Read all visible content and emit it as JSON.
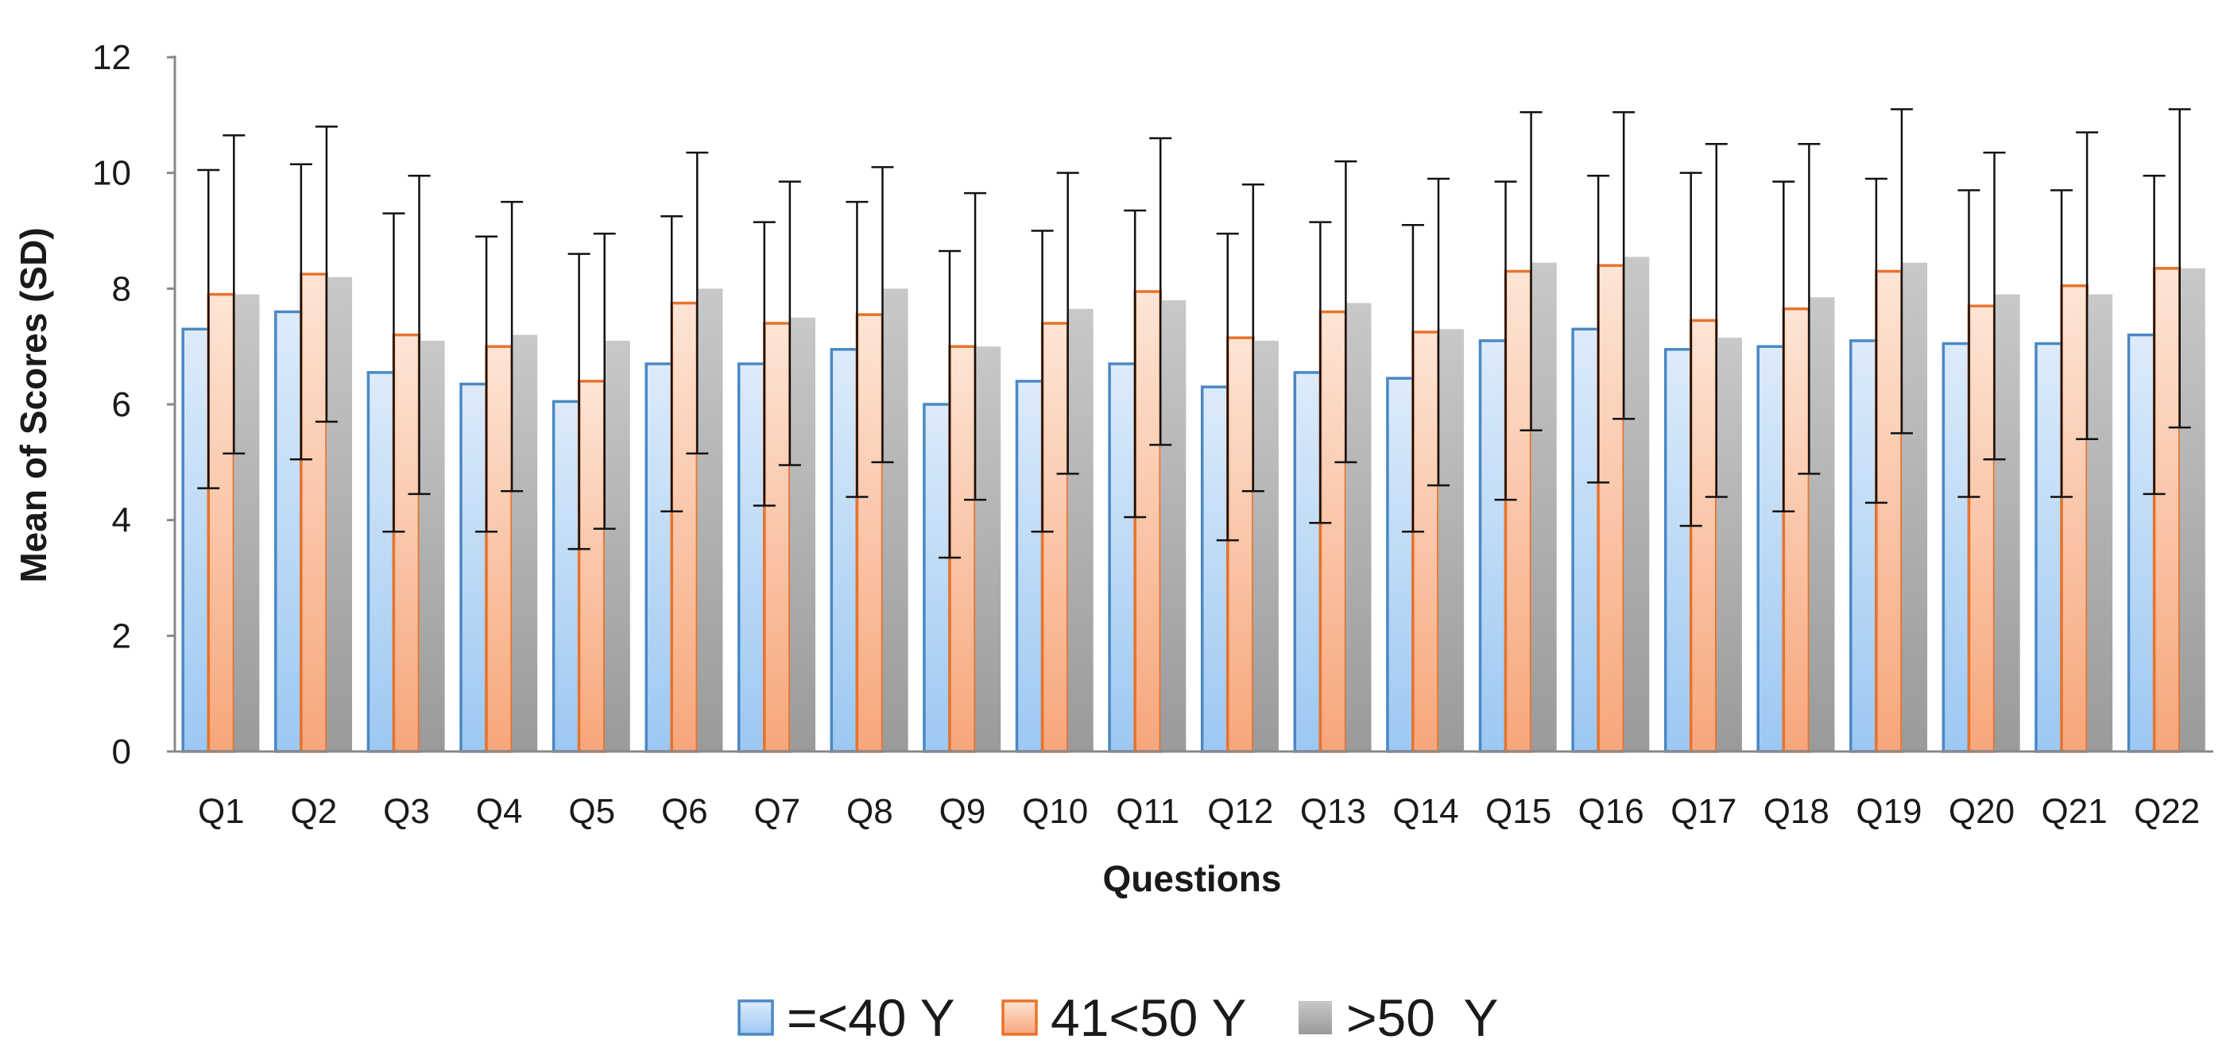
{
  "chart_data": {
    "type": "bar",
    "title": "",
    "xlabel": "Questions",
    "ylabel": "Mean of Scores (SD)",
    "ylim": [
      0,
      12
    ],
    "yticks": [
      0,
      2,
      4,
      6,
      8,
      10,
      12
    ],
    "grid": false,
    "legend_position": "bottom",
    "categories": [
      "Q1",
      "Q2",
      "Q3",
      "Q4",
      "Q5",
      "Q6",
      "Q7",
      "Q8",
      "Q9",
      "Q10",
      "Q11",
      "Q12",
      "Q13",
      "Q14",
      "Q15",
      "Q16",
      "Q17",
      "Q18",
      "Q19",
      "Q20",
      "Q21",
      "Q22"
    ],
    "series": [
      {
        "name": "=<40 Y",
        "color": "#4A88C4",
        "fill_top": "#DDEBFA",
        "fill_bottom": "#9CC8F2",
        "values": [
          7.3,
          7.6,
          6.55,
          6.35,
          6.05,
          6.7,
          6.7,
          6.95,
          6.0,
          6.4,
          6.7,
          6.3,
          6.55,
          6.45,
          7.1,
          7.3,
          6.95,
          7.0,
          7.1,
          7.05,
          7.05,
          7.2
        ],
        "sd": [
          2.75,
          2.55,
          2.75,
          2.55,
          2.55,
          2.55,
          2.45,
          2.55,
          2.65,
          2.6,
          2.65,
          2.65,
          2.6,
          2.65,
          2.75,
          2.65,
          3.05,
          2.85,
          2.8,
          2.65,
          2.65,
          2.75
        ]
      },
      {
        "name": "41<50 Y",
        "color": "#E8732A",
        "fill_top": "#FDE5D6",
        "fill_bottom": "#F7A67B",
        "values": [
          7.9,
          8.25,
          7.2,
          7.0,
          6.4,
          7.75,
          7.4,
          7.55,
          7.0,
          7.4,
          7.95,
          7.15,
          7.6,
          7.25,
          8.3,
          8.4,
          7.45,
          7.65,
          8.3,
          7.7,
          8.05,
          8.35
        ],
        "sd": [
          2.75,
          2.55,
          2.75,
          2.5,
          2.55,
          2.6,
          2.45,
          2.55,
          2.65,
          2.6,
          2.65,
          2.65,
          2.6,
          2.65,
          2.75,
          2.65,
          3.05,
          2.85,
          2.8,
          2.65,
          2.65,
          2.75
        ]
      },
      {
        "name": ">50  Y",
        "color": "#A6A6A6",
        "fill_top": "#C8C8C8",
        "fill_bottom": "#9A9A9A",
        "values": [
          7.9,
          8.2,
          7.1,
          7.2,
          7.1,
          8.0,
          7.5,
          8.0,
          7.0,
          7.65,
          7.8,
          7.1,
          7.75,
          7.3,
          8.45,
          8.55,
          7.15,
          7.85,
          8.45,
          7.9,
          7.9,
          8.35
        ],
        "sd": []
      }
    ]
  }
}
